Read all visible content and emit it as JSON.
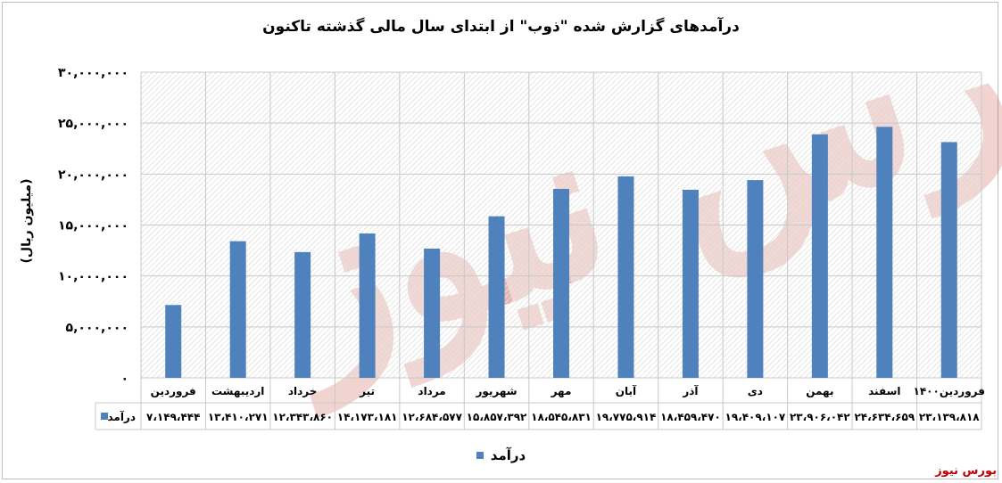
{
  "chart_data": {
    "type": "bar",
    "title": "درآمدهای گزارش شده \"ذوب\" از ابتدای سال مالی گذشته تاکنون",
    "ylabel": "(میلیون ریال)",
    "xlabel": "",
    "ylim": [
      0,
      30000000
    ],
    "yticks": [
      0,
      5000000,
      10000000,
      15000000,
      20000000,
      25000000,
      30000000
    ],
    "ytick_labels": [
      "۰",
      "۵,۰۰۰,۰۰۰",
      "۱۰,۰۰۰,۰۰۰",
      "۱۵,۰۰۰,۰۰۰",
      "۲۰,۰۰۰,۰۰۰",
      "۲۵,۰۰۰,۰۰۰",
      "۳۰,۰۰۰,۰۰۰"
    ],
    "grid": true,
    "legend_position": "bottom",
    "categories": [
      "فروردین",
      "اردیبهشت",
      "خرداد",
      "تیر",
      "مرداد",
      "شهریور",
      "مهر",
      "آبان",
      "آذر",
      "دی",
      "بهمن",
      "اسفند",
      "فروردین۱۴۰۰"
    ],
    "series": [
      {
        "name": "درآمد",
        "color": "#4f81bd",
        "values": [
          7149444,
          13410271,
          12343860,
          14173181,
          12684577,
          15857392,
          18545831,
          19775914,
          18459470,
          19409107,
          23906042,
          24634659,
          23139818
        ],
        "value_labels": [
          "۷،۱۴۹،۴۴۴",
          "۱۳،۴۱۰،۲۷۱",
          "۱۲،۳۴۳،۸۶۰",
          "۱۴،۱۷۳،۱۸۱",
          "۱۲،۶۸۴،۵۷۷",
          "۱۵،۸۵۷،۳۹۲",
          "۱۸،۵۴۵،۸۳۱",
          "۱۹،۷۷۵،۹۱۴",
          "۱۸،۴۵۹،۴۷۰",
          "۱۹،۴۰۹،۱۰۷",
          "۲۳،۹۰۶،۰۴۲",
          "۲۴،۶۳۴،۶۵۹",
          "۲۳،۱۳۹،۸۱۸"
        ]
      }
    ]
  },
  "legend": {
    "label": "درآمد"
  },
  "table_row_label": "درآمد",
  "source": "بورس نیوز",
  "watermark": "بورس نیوز"
}
